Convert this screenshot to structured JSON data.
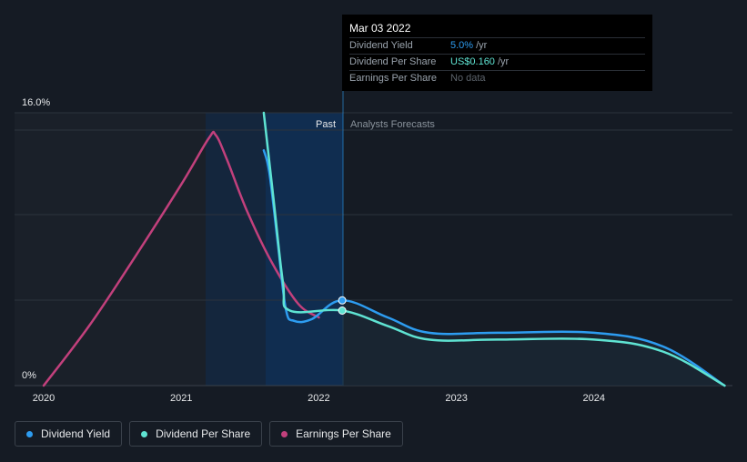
{
  "chart_data": {
    "type": "line",
    "y_axis": {
      "labels": [
        "16.0%",
        "0%"
      ],
      "min": 0,
      "max": 16
    },
    "x_axis": {
      "tick_labels": [
        "2020",
        "2021",
        "2022",
        "2023",
        "2024"
      ]
    },
    "regions": {
      "past_label": "Past",
      "forecast_label": "Analysts Forecasts"
    },
    "series": [
      {
        "name": "Dividend Yield",
        "color": "#2d9cf0",
        "points": [
          [
            2021.6,
            13.8
          ],
          [
            2021.64,
            12.5
          ],
          [
            2021.7,
            8.5
          ],
          [
            2021.76,
            4.5
          ],
          [
            2021.82,
            3.8
          ],
          [
            2021.95,
            3.9
          ],
          [
            2022.17,
            5.0
          ],
          [
            2022.5,
            4.0
          ],
          [
            2022.8,
            3.1
          ],
          [
            2023.3,
            3.1
          ],
          [
            2024.0,
            3.1
          ],
          [
            2024.5,
            2.3
          ],
          [
            2024.95,
            0.0
          ]
        ]
      },
      {
        "name": "Dividend Per Share",
        "color": "#5fe3d2",
        "points": [
          [
            2021.6,
            16.0
          ],
          [
            2021.67,
            11.0
          ],
          [
            2021.74,
            6.0
          ],
          [
            2021.79,
            4.4
          ],
          [
            2022.17,
            4.4
          ],
          [
            2022.5,
            3.5
          ],
          [
            2022.8,
            2.7
          ],
          [
            2023.3,
            2.7
          ],
          [
            2024.0,
            2.7
          ],
          [
            2024.5,
            2.0
          ],
          [
            2024.95,
            0.0
          ]
        ]
      },
      {
        "name": "Earnings Per Share",
        "color": "#c2407c",
        "points": [
          [
            2020.0,
            0.0
          ],
          [
            2020.33,
            3.5
          ],
          [
            2020.66,
            7.5
          ],
          [
            2021.0,
            11.8
          ],
          [
            2021.2,
            14.5
          ],
          [
            2021.25,
            14.7
          ],
          [
            2021.33,
            13.3
          ],
          [
            2021.48,
            10.2
          ],
          [
            2021.66,
            7.2
          ],
          [
            2021.85,
            4.8
          ],
          [
            2022.0,
            4.0
          ]
        ]
      }
    ],
    "highlight": {
      "date": "Mar 03 2022",
      "x": 2022.17,
      "dividend_yield": 5.0,
      "dividend_per_share": 0.16
    },
    "grid": true,
    "legend_position": "bottom-left"
  },
  "tooltip": {
    "date": "Mar 03 2022",
    "rows": [
      {
        "label": "Dividend Yield",
        "value": "5.0%",
        "unit": "/yr"
      },
      {
        "label": "Dividend Per Share",
        "value": "US$0.160",
        "unit": "/yr"
      },
      {
        "label": "Earnings Per Share",
        "value": "No data",
        "unit": ""
      }
    ]
  },
  "legend": [
    {
      "label": "Dividend Yield",
      "color": "#2d9cf0"
    },
    {
      "label": "Dividend Per Share",
      "color": "#5fe3d2"
    },
    {
      "label": "Earnings Per Share",
      "color": "#c2407c"
    }
  ]
}
